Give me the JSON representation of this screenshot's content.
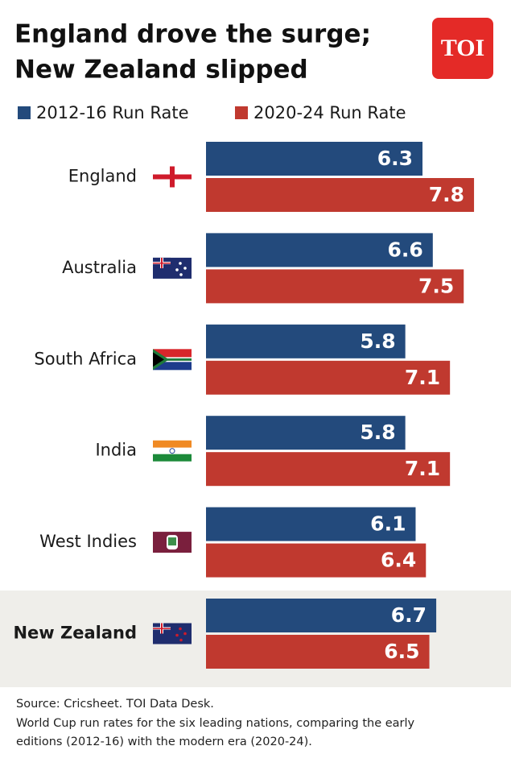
{
  "chart_data": {
    "type": "hbar",
    "title": [
      "England drove the surge;",
      "New Zealand slipped"
    ],
    "logo": "TOI",
    "categories": [
      "England",
      "Australia",
      "South Africa",
      "India",
      "West Indies",
      "New Zealand"
    ],
    "series": [
      {
        "name": "2012-16 Run Rate",
        "color": "#234a7c",
        "values": [
          6.3,
          6.6,
          5.8,
          5.8,
          6.1,
          6.7
        ]
      },
      {
        "name": "2020-24 Run Rate",
        "color": "#c0392f",
        "values": [
          7.8,
          7.5,
          7.1,
          7.1,
          6.4,
          6.5
        ]
      }
    ],
    "source": "Source: Cricsheet. TOI Data Desk.",
    "note": [
      "World Cup run rates for the six leading nations, comparing the early",
      "editions (2012-16) with the modern era (2020-24)."
    ]
  }
}
